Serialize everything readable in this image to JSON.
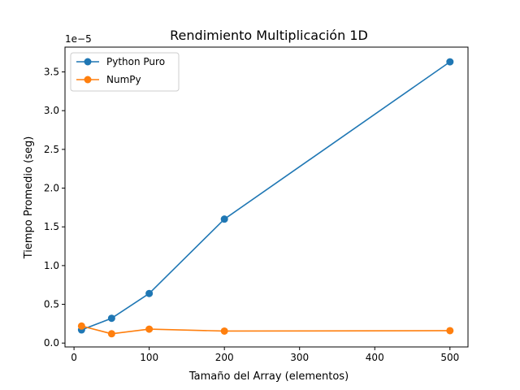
{
  "chart_data": {
    "type": "line",
    "title": "Rendimiento Multiplicación 1D",
    "xlabel": "Tamaño del Array (elementos)",
    "ylabel": "Tiempo Promedio (seg)",
    "y_offset_label": "1e−5",
    "xlim": [
      -12,
      524
    ],
    "ylim": [
      -0.05,
      3.82
    ],
    "x_ticks": [
      0,
      100,
      200,
      300,
      400,
      500
    ],
    "x_tick_labels": [
      "0",
      "100",
      "200",
      "300",
      "400",
      "500"
    ],
    "y_ticks": [
      0,
      0.5,
      1.0,
      1.5,
      2.0,
      2.5,
      3.0,
      3.5
    ],
    "y_tick_labels": [
      "0.0",
      "0.5",
      "1.0",
      "1.5",
      "2.0",
      "2.5",
      "3.0",
      "3.5"
    ],
    "grid": false,
    "legend_position": "top-left",
    "x": [
      10,
      50,
      100,
      200,
      500
    ],
    "series": [
      {
        "name": "Python Puro",
        "color": "#1f77b4",
        "marker": "circle",
        "values": [
          0.17,
          0.32,
          0.64,
          1.6,
          3.63
        ]
      },
      {
        "name": "NumPy",
        "color": "#ff7f0e",
        "marker": "circle",
        "values": [
          0.22,
          0.12,
          0.18,
          0.155,
          0.16
        ]
      }
    ]
  }
}
